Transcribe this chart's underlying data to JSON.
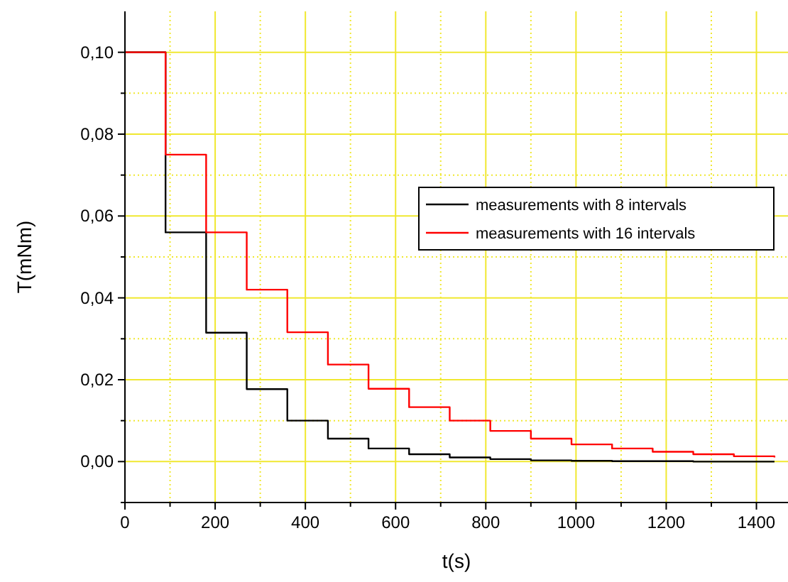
{
  "chart_data": {
    "type": "step",
    "xlabel": "t(s)",
    "ylabel": "T(mNm)",
    "x": [
      0,
      90,
      180,
      270,
      360,
      450,
      540,
      630,
      720,
      810,
      900,
      990,
      1080,
      1170,
      1260,
      1350,
      1440
    ],
    "series": [
      {
        "name": "measurements with 8 intervals",
        "color": "#000000",
        "values": [
          0.1,
          0.056,
          0.0315,
          0.0177,
          0.01,
          0.0056,
          0.0032,
          0.0018,
          0.001,
          0.0006,
          0.0003,
          0.0002,
          0.0001,
          0.0001,
          0,
          0,
          0
        ]
      },
      {
        "name": "measurements with 16 intervals",
        "color": "#ff0000",
        "values": [
          0.1,
          0.075,
          0.056,
          0.042,
          0.0316,
          0.0237,
          0.0178,
          0.0133,
          0.01,
          0.0075,
          0.0056,
          0.0042,
          0.0032,
          0.0024,
          0.0018,
          0.0013,
          0.001
        ]
      }
    ],
    "xlim": [
      0,
      1470
    ],
    "ylim": [
      -0.01,
      0.11
    ],
    "xticks": [
      0,
      {
        "value": 100,
        "label": null
      },
      200,
      {
        "value": 300,
        "label": null
      },
      400,
      {
        "value": 500,
        "label": null
      },
      600,
      {
        "value": 700,
        "label": null
      },
      800,
      {
        "value": 900,
        "label": null
      },
      1000,
      {
        "value": 1100,
        "label": null
      },
      1200,
      {
        "value": 1300,
        "label": null
      },
      1400
    ],
    "yticks": [
      {
        "value": -0.01,
        "label": null
      },
      {
        "value": 0,
        "label": "0,00"
      },
      {
        "value": 0.01,
        "label": null
      },
      {
        "value": 0.02,
        "label": "0,02"
      },
      {
        "value": 0.03,
        "label": null
      },
      {
        "value": 0.04,
        "label": "0,04"
      },
      {
        "value": 0.05,
        "label": null
      },
      {
        "value": 0.06,
        "label": "0,06"
      },
      {
        "value": 0.07,
        "label": null
      },
      {
        "value": 0.08,
        "label": "0,08"
      },
      {
        "value": 0.09,
        "label": null
      },
      {
        "value": 0.1,
        "label": "0,10"
      }
    ],
    "grid": true,
    "legend": "right",
    "line_style": "solid"
  }
}
